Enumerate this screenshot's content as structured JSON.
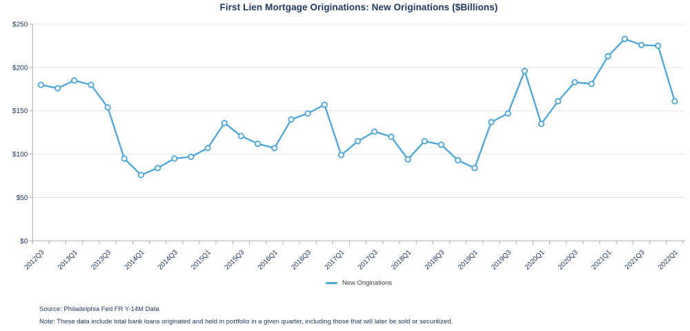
{
  "chart": {
    "title": "First Lien Mortgage Originations: New Originations ($Billions)",
    "legend_label": "New Originations",
    "source": "Source: Philadelphia Fed FR Y-14M Data",
    "note": "Note: These data include total bank loans originated and held in portfolio in a given quarter, including those that will later be sold or securitized."
  },
  "chart_data": {
    "type": "line",
    "title": "First Lien Mortgage Originations: New Originations ($Billions)",
    "categories": [
      "2012Q3",
      "2012Q4",
      "2013Q1",
      "2013Q2",
      "2013Q3",
      "2013Q4",
      "2014Q1",
      "2014Q2",
      "2014Q3",
      "2014Q4",
      "2015Q1",
      "2015Q2",
      "2015Q3",
      "2015Q4",
      "2016Q1",
      "2016Q2",
      "2016Q3",
      "2016Q4",
      "2017Q1",
      "2017Q2",
      "2017Q3",
      "2017Q4",
      "2018Q1",
      "2018Q2",
      "2018Q3",
      "2018Q4",
      "2019Q1",
      "2019Q2",
      "2019Q3",
      "2019Q4",
      "2020Q1",
      "2020Q2",
      "2020Q3",
      "2020Q4",
      "2021Q1",
      "2021Q2",
      "2021Q3",
      "2021Q4",
      "2022Q1"
    ],
    "x_tick_labels": [
      "2012Q3",
      "2013Q1",
      "2013Q3",
      "2014Q1",
      "2014Q3",
      "2015Q1",
      "2015Q3",
      "2016Q1",
      "2016Q3",
      "2017Q1",
      "2017Q3",
      "2018Q1",
      "2018Q3",
      "2019Q1",
      "2019Q3",
      "2020Q1",
      "2020Q3",
      "2021Q1",
      "2021Q3",
      "2022Q1"
    ],
    "x_label_every": 2,
    "series": [
      {
        "name": "New Originations",
        "values": [
          180,
          176,
          185,
          180,
          154,
          95,
          76,
          84,
          95,
          97,
          107,
          136,
          121,
          112,
          107,
          140,
          147,
          157,
          99,
          115,
          126,
          120,
          94,
          115,
          111,
          93,
          84,
          137,
          147,
          196,
          135,
          161,
          183,
          181,
          213,
          233,
          226,
          225,
          161
        ]
      }
    ],
    "ylim": [
      0,
      250
    ],
    "y_ticks": [
      0,
      50,
      100,
      150,
      200,
      250
    ],
    "y_tick_labels": [
      "$0",
      "$50",
      "$100",
      "$150",
      "$200",
      "$250"
    ],
    "grid": "horizontal",
    "legend_position": "bottom",
    "marker": "circle-open",
    "colors": {
      "line": "#4AA5DB",
      "marker_fill": "#FFFFFF",
      "title_text": "#1F3864",
      "axis_text": "#1F3864",
      "gridline": "#E2E2E2",
      "axis_line": "#ABABAB",
      "legend_text": "#3F3F3F",
      "footer_text": "#1F3864"
    }
  }
}
